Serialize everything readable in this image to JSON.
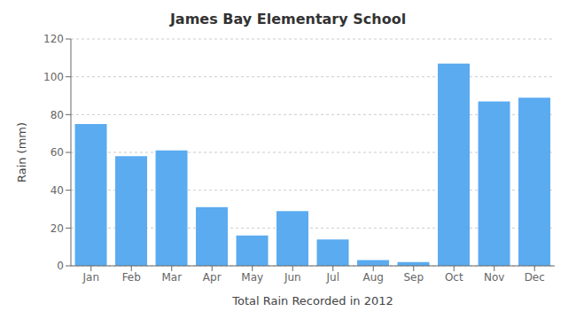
{
  "chart_data": {
    "type": "bar",
    "title": "James Bay Elementary School",
    "xlabel": "Total Rain Recorded in 2012",
    "ylabel": "Rain (mm)",
    "categories": [
      "Jan",
      "Feb",
      "Mar",
      "Apr",
      "May",
      "Jun",
      "Jul",
      "Aug",
      "Sep",
      "Oct",
      "Nov",
      "Dec"
    ],
    "values": [
      75,
      58,
      61,
      31,
      16,
      29,
      14,
      3,
      2,
      107,
      87,
      89
    ],
    "color": "#5aabf0",
    "ylim": [
      0,
      120
    ],
    "yticks": [
      0,
      20,
      40,
      60,
      80,
      100,
      120
    ],
    "grid": true
  }
}
